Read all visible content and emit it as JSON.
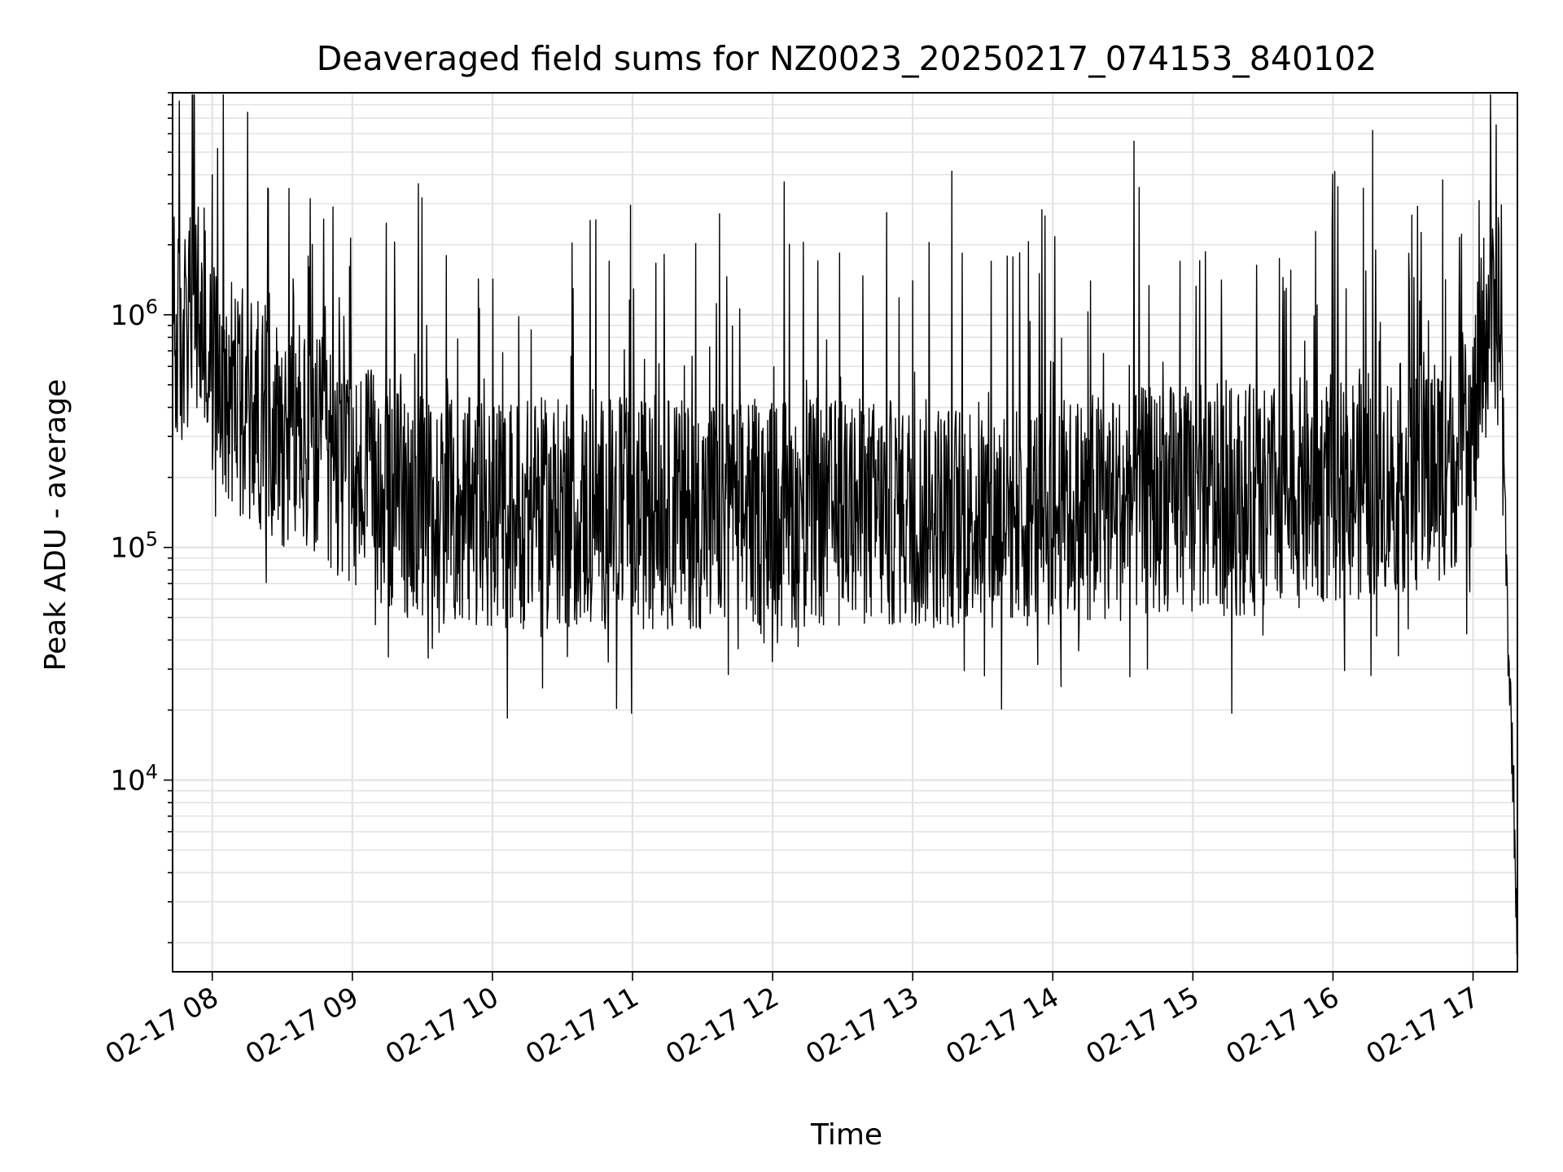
{
  "chart_data": {
    "type": "line",
    "title": "Deaveraged field sums for NZ0023_20250217_074153_840102",
    "xlabel": "Time",
    "ylabel": "Peak ADU - average",
    "yscale": "log",
    "xlim": [
      "2025-02-17 07:43",
      "2025-02-17 17:19"
    ],
    "ylim": [
      1500,
      9000000
    ],
    "grid": true,
    "x_ticks": [
      {
        "value": "2025-02-17 08:00",
        "label": "02-17 08"
      },
      {
        "value": "2025-02-17 09:00",
        "label": "02-17 09"
      },
      {
        "value": "2025-02-17 10:00",
        "label": "02-17 10"
      },
      {
        "value": "2025-02-17 11:00",
        "label": "02-17 11"
      },
      {
        "value": "2025-02-17 12:00",
        "label": "02-17 12"
      },
      {
        "value": "2025-02-17 13:00",
        "label": "02-17 13"
      },
      {
        "value": "2025-02-17 14:00",
        "label": "02-17 14"
      },
      {
        "value": "2025-02-17 15:00",
        "label": "02-17 15"
      },
      {
        "value": "2025-02-17 16:00",
        "label": "02-17 16"
      },
      {
        "value": "2025-02-17 17:00",
        "label": "02-17 17"
      }
    ],
    "y_ticks": [
      {
        "value": 10000,
        "base": "10",
        "exp": "4"
      },
      {
        "value": 100000,
        "base": "10",
        "exp": "5"
      },
      {
        "value": 1000000,
        "base": "10",
        "exp": "6"
      }
    ],
    "series": [
      {
        "color": "#000000",
        "x": [
          "2025-02-17 07:43",
          "2025-02-17 07:46",
          "2025-02-17 07:50",
          "2025-02-17 07:53",
          "2025-02-17 07:56",
          "2025-02-17 08:00",
          "2025-02-17 08:05",
          "2025-02-17 08:10",
          "2025-02-17 08:15",
          "2025-02-17 08:20",
          "2025-02-17 08:25",
          "2025-02-17 08:30",
          "2025-02-17 08:35",
          "2025-02-17 08:40",
          "2025-02-17 08:45",
          "2025-02-17 08:50",
          "2025-02-17 08:55",
          "2025-02-17 09:00",
          "2025-02-17 09:10",
          "2025-02-17 09:20",
          "2025-02-17 09:30",
          "2025-02-17 09:40",
          "2025-02-17 09:50",
          "2025-02-17 10:00",
          "2025-02-17 10:15",
          "2025-02-17 10:30",
          "2025-02-17 10:45",
          "2025-02-17 11:00",
          "2025-02-17 11:15",
          "2025-02-17 11:30",
          "2025-02-17 11:45",
          "2025-02-17 12:00",
          "2025-02-17 12:15",
          "2025-02-17 12:30",
          "2025-02-17 12:45",
          "2025-02-17 13:00",
          "2025-02-17 13:15",
          "2025-02-17 13:30",
          "2025-02-17 13:45",
          "2025-02-17 14:00",
          "2025-02-17 14:15",
          "2025-02-17 14:30",
          "2025-02-17 14:45",
          "2025-02-17 15:00",
          "2025-02-17 15:15",
          "2025-02-17 15:30",
          "2025-02-17 15:45",
          "2025-02-17 16:00",
          "2025-02-17 16:15",
          "2025-02-17 16:30",
          "2025-02-17 16:45",
          "2025-02-17 17:00",
          "2025-02-17 17:05",
          "2025-02-17 17:08",
          "2025-02-17 17:11",
          "2025-02-17 17:13",
          "2025-02-17 17:15",
          "2025-02-17 17:17",
          "2025-02-17 17:19"
        ],
        "y": [
          800000,
          700000,
          900000,
          1000000,
          800000,
          600000,
          550000,
          450000,
          400000,
          380000,
          350000,
          320000,
          300000,
          280000,
          260000,
          250000,
          230000,
          200000,
          180000,
          160000,
          150000,
          140000,
          140000,
          140000,
          140000,
          140000,
          140000,
          140000,
          140000,
          140000,
          140000,
          140000,
          140000,
          140000,
          140000,
          140000,
          140000,
          140000,
          140000,
          140000,
          150000,
          150000,
          160000,
          160000,
          160000,
          160000,
          170000,
          180000,
          190000,
          200000,
          220000,
          300000,
          800000,
          1200000,
          1000000,
          300000,
          40000,
          12000,
          2000
        ]
      }
    ],
    "notable_points": [
      {
        "x": "2025-02-17 08:00",
        "y": 4000000
      },
      {
        "x": "2025-02-17 07:54",
        "y": 2900000
      },
      {
        "x": "2025-02-17 16:17",
        "y": 6200000
      },
      {
        "x": "2025-02-17 16:47",
        "y": 3800000
      },
      {
        "x": "2025-02-17 16:13",
        "y": 3500000
      },
      {
        "x": "2025-02-17 10:50",
        "y": 1700000
      },
      {
        "x": "2025-02-17 13:00",
        "y": 1400000
      },
      {
        "x": "2025-02-17 15:40",
        "y": 1300000
      },
      {
        "x": "2025-02-17 17:10",
        "y": 2300000
      },
      {
        "x": "2025-02-17 15:30",
        "y": 42000
      },
      {
        "x": "2025-02-17 12:50",
        "y": 47000
      },
      {
        "x": "2025-02-17 09:50",
        "y": 49000
      },
      {
        "x": "2025-02-17 14:15",
        "y": 49000
      }
    ]
  }
}
